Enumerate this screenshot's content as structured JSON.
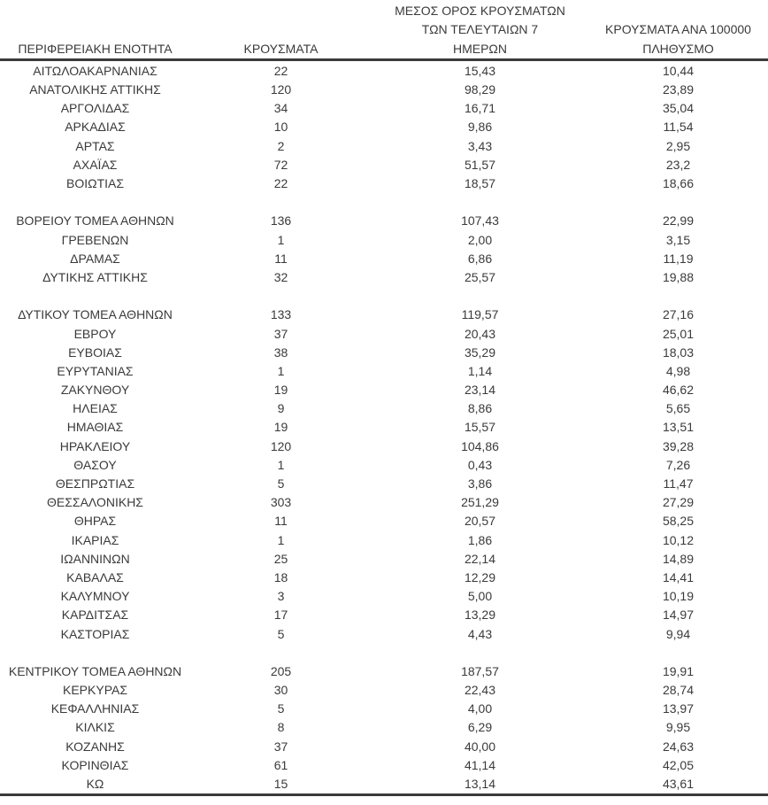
{
  "colors": {
    "text": "#3a3a3a",
    "line": "#3a3a3a",
    "background": "#ffffff"
  },
  "table": {
    "columns": [
      {
        "id": "name",
        "label": "ΠΕΡΙΦΕΡΕΙΑΚΗ ΕΝΟΤΗΤΑ"
      },
      {
        "id": "cases",
        "label": "ΚΡΟΥΣΜΑΤΑ"
      },
      {
        "id": "avg7",
        "label": "ΜΕΣΟΣ ΟΡΟΣ ΚΡΟΥΣΜΑΤΩΝ\nΤΩΝ ΤΕΛΕΥΤΑΙΩΝ 7\nΗΜΕΡΩΝ"
      },
      {
        "id": "per100k",
        "label": "ΚΡΟΥΣΜΑΤΑ ΑΝΑ 100000\nΠΛΗΘΥΣΜΟ"
      }
    ],
    "rows": [
      {
        "name": "ΑΙΤΩΛΟΑΚΑΡΝΑΝΙΑΣ",
        "cases": "22",
        "avg7": "15,43",
        "per100k": "10,44"
      },
      {
        "name": "ΑΝΑΤΟΛΙΚΗΣ ΑΤΤΙΚΗΣ",
        "cases": "120",
        "avg7": "98,29",
        "per100k": "23,89"
      },
      {
        "name": "ΑΡΓΟΛΙΔΑΣ",
        "cases": "34",
        "avg7": "16,71",
        "per100k": "35,04"
      },
      {
        "name": "ΑΡΚΑΔΙΑΣ",
        "cases": "10",
        "avg7": "9,86",
        "per100k": "11,54"
      },
      {
        "name": "ΑΡΤΑΣ",
        "cases": "2",
        "avg7": "3,43",
        "per100k": "2,95"
      },
      {
        "name": "ΑΧΑΪΑΣ",
        "cases": "72",
        "avg7": "51,57",
        "per100k": "23,2"
      },
      {
        "name": "ΒΟΙΩΤΙΑΣ",
        "cases": "22",
        "avg7": "18,57",
        "per100k": "18,66"
      },
      {
        "spacer": true
      },
      {
        "name": "ΒΟΡΕΙΟΥ ΤΟΜΕΑ ΑΘΗΝΩΝ",
        "cases": "136",
        "avg7": "107,43",
        "per100k": "22,99"
      },
      {
        "name": "ΓΡΕΒΕΝΩΝ",
        "cases": "1",
        "avg7": "2,00",
        "per100k": "3,15"
      },
      {
        "name": "ΔΡΑΜΑΣ",
        "cases": "11",
        "avg7": "6,86",
        "per100k": "11,19"
      },
      {
        "name": "ΔΥΤΙΚΗΣ ΑΤΤΙΚΗΣ",
        "cases": "32",
        "avg7": "25,57",
        "per100k": "19,88"
      },
      {
        "spacer": true
      },
      {
        "name": "ΔΥΤΙΚΟΥ ΤΟΜΕΑ ΑΘΗΝΩΝ",
        "cases": "133",
        "avg7": "119,57",
        "per100k": "27,16"
      },
      {
        "name": "ΕΒΡΟΥ",
        "cases": "37",
        "avg7": "20,43",
        "per100k": "25,01"
      },
      {
        "name": "ΕΥΒΟΙΑΣ",
        "cases": "38",
        "avg7": "35,29",
        "per100k": "18,03"
      },
      {
        "name": "ΕΥΡΥΤΑΝΙΑΣ",
        "cases": "1",
        "avg7": "1,14",
        "per100k": "4,98"
      },
      {
        "name": "ΖΑΚΥΝΘΟΥ",
        "cases": "19",
        "avg7": "23,14",
        "per100k": "46,62"
      },
      {
        "name": "ΗΛΕΙΑΣ",
        "cases": "9",
        "avg7": "8,86",
        "per100k": "5,65"
      },
      {
        "name": "ΗΜΑΘΙΑΣ",
        "cases": "19",
        "avg7": "15,57",
        "per100k": "13,51"
      },
      {
        "name": "ΗΡΑΚΛΕΙΟΥ",
        "cases": "120",
        "avg7": "104,86",
        "per100k": "39,28"
      },
      {
        "name": "ΘΑΣΟΥ",
        "cases": "1",
        "avg7": "0,43",
        "per100k": "7,26"
      },
      {
        "name": "ΘΕΣΠΡΩΤΙΑΣ",
        "cases": "5",
        "avg7": "3,86",
        "per100k": "11,47"
      },
      {
        "name": "ΘΕΣΣΑΛΟΝΙΚΗΣ",
        "cases": "303",
        "avg7": "251,29",
        "per100k": "27,29"
      },
      {
        "name": "ΘΗΡΑΣ",
        "cases": "11",
        "avg7": "20,57",
        "per100k": "58,25"
      },
      {
        "name": "ΙΚΑΡΙΑΣ",
        "cases": "1",
        "avg7": "1,86",
        "per100k": "10,12"
      },
      {
        "name": "ΙΩΑΝΝΙΝΩΝ",
        "cases": "25",
        "avg7": "22,14",
        "per100k": "14,89"
      },
      {
        "name": "ΚΑΒΑΛΑΣ",
        "cases": "18",
        "avg7": "12,29",
        "per100k": "14,41"
      },
      {
        "name": "ΚΑΛΥΜΝΟΥ",
        "cases": "3",
        "avg7": "5,00",
        "per100k": "10,19"
      },
      {
        "name": "ΚΑΡΔΙΤΣΑΣ",
        "cases": "17",
        "avg7": "13,29",
        "per100k": "14,97"
      },
      {
        "name": "ΚΑΣΤΟΡΙΑΣ",
        "cases": "5",
        "avg7": "4,43",
        "per100k": "9,94"
      },
      {
        "spacer": true
      },
      {
        "name": "ΚΕΝΤΡΙΚΟΥ ΤΟΜΕΑ ΑΘΗΝΩΝ",
        "cases": "205",
        "avg7": "187,57",
        "per100k": "19,91"
      },
      {
        "name": "ΚΕΡΚΥΡΑΣ",
        "cases": "30",
        "avg7": "22,43",
        "per100k": "28,74"
      },
      {
        "name": "ΚΕΦΑΛΛΗΝΙΑΣ",
        "cases": "5",
        "avg7": "4,00",
        "per100k": "13,97"
      },
      {
        "name": "ΚΙΛΚΙΣ",
        "cases": "8",
        "avg7": "6,29",
        "per100k": "9,95"
      },
      {
        "name": "ΚΟΖΑΝΗΣ",
        "cases": "37",
        "avg7": "40,00",
        "per100k": "24,63"
      },
      {
        "name": "ΚΟΡΙΝΘΙΑΣ",
        "cases": "61",
        "avg7": "41,14",
        "per100k": "42,05"
      },
      {
        "name": "ΚΩ",
        "cases": "15",
        "avg7": "13,14",
        "per100k": "43,61"
      }
    ]
  }
}
